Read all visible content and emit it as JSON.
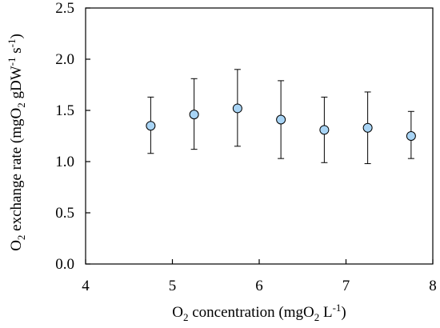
{
  "chart_data": {
    "type": "scatter",
    "xlabel": {
      "main": "O",
      "sub1": "2",
      "mid": " concentration (mgO",
      "sub2": "2",
      "mid2": " L",
      "sup": "-1",
      "end": ")"
    },
    "ylabel": {
      "main": "O",
      "sub1": "2",
      "mid": " exchange rate (mgO",
      "sub2": "2",
      "mid2": " gDW",
      "sup1": "-1",
      "mid3": " s",
      "sup2": "-1",
      "end": ")"
    },
    "xlim": [
      4,
      8
    ],
    "ylim": [
      0.0,
      2.5
    ],
    "xticks": [
      "4",
      "5",
      "6",
      "7",
      "8"
    ],
    "yticks": [
      "0.0",
      "0.5",
      "1.0",
      "1.5",
      "2.0",
      "2.5"
    ],
    "grid": false,
    "marker_color": "#a8d4f5",
    "points": [
      {
        "x": 4.75,
        "y": 1.35,
        "err_low": 1.08,
        "err_high": 1.63
      },
      {
        "x": 5.25,
        "y": 1.46,
        "err_low": 1.12,
        "err_high": 1.81
      },
      {
        "x": 5.75,
        "y": 1.52,
        "err_low": 1.15,
        "err_high": 1.9
      },
      {
        "x": 6.25,
        "y": 1.41,
        "err_low": 1.03,
        "err_high": 1.79
      },
      {
        "x": 6.75,
        "y": 1.31,
        "err_low": 0.99,
        "err_high": 1.63
      },
      {
        "x": 7.25,
        "y": 1.33,
        "err_low": 0.98,
        "err_high": 1.68
      },
      {
        "x": 7.75,
        "y": 1.25,
        "err_low": 1.03,
        "err_high": 1.49
      }
    ]
  }
}
